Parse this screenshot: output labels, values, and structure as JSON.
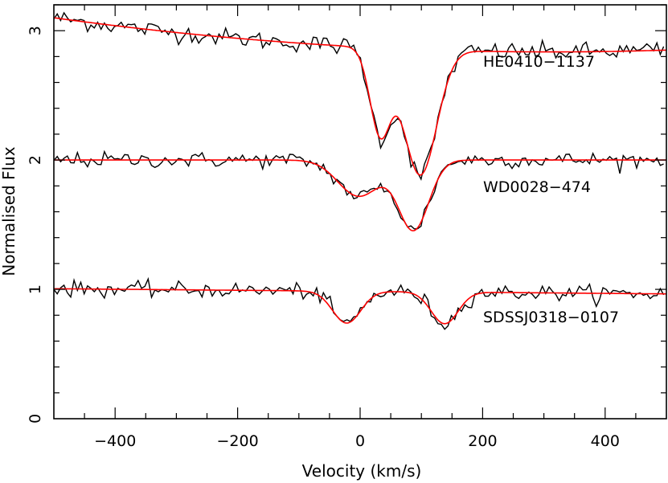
{
  "chart_data": {
    "type": "line",
    "title": "",
    "xlabel": "Velocity (km/s)",
    "ylabel": "Normalised Flux",
    "xlim": [
      -500,
      500
    ],
    "ylim": [
      0,
      3.2
    ],
    "xticks": [
      -400,
      -200,
      0,
      200,
      400
    ],
    "yticks": [
      0,
      1,
      2,
      3
    ],
    "xtick_labels": [
      "−400",
      "−200",
      "0",
      "200",
      "400"
    ],
    "ytick_labels": [
      "0",
      "1",
      "2",
      "3"
    ],
    "grid": false,
    "legend": "none",
    "colors": {
      "observed": "#000000",
      "model_fit": "#ff0000"
    },
    "series": [
      {
        "name": "HE0410−1137",
        "continuum": {
          "a": 2.875,
          "b": -0.00025,
          "c": 4e-07
        },
        "absorption_components": [
          {
            "center": 33,
            "depth": 0.23,
            "width": 17
          },
          {
            "center": 98,
            "depth": 0.34,
            "width": 27
          }
        ],
        "noise": 0.035
      },
      {
        "name": "WD0028−474",
        "continuum": {
          "a": 2.0,
          "b": 0.0,
          "c": 0.0
        },
        "absorption_components": [
          {
            "center": -2,
            "depth": 0.14,
            "width": 34
          },
          {
            "center": 87,
            "depth": 0.27,
            "width": 25
          }
        ],
        "noise": 0.03
      },
      {
        "name": "SDSSJ0318−0107",
        "continuum": {
          "a": 0.985,
          "b": -4e-05,
          "c": 0.0
        },
        "absorption_components": [
          {
            "center": -22,
            "depth": 0.25,
            "width": 23
          },
          {
            "center": 138,
            "depth": 0.25,
            "width": 22
          }
        ],
        "noise": 0.03
      }
    ]
  }
}
